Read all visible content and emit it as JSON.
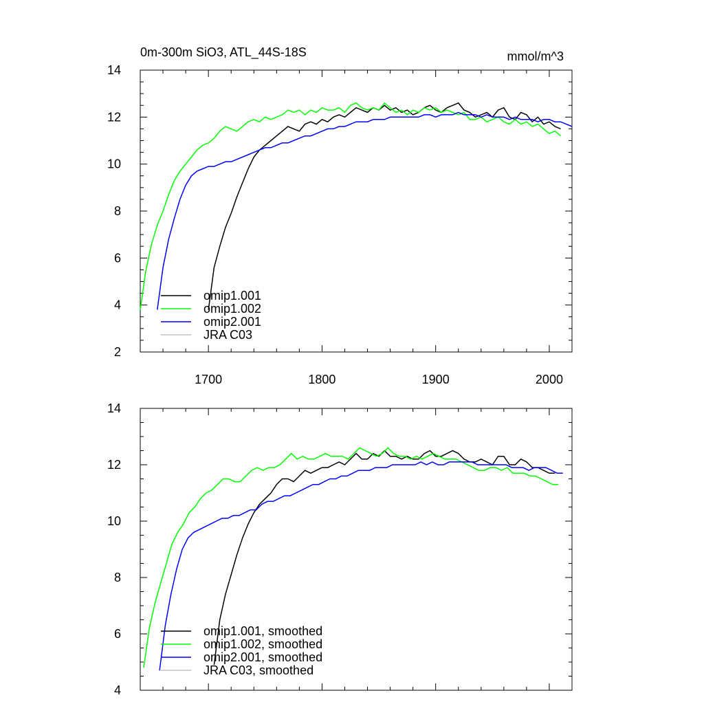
{
  "chart_data": [
    {
      "type": "line",
      "title": "0m-300m SiO3, ATL_44S-18S",
      "units": "mmol/m^3",
      "xlim": [
        1640,
        2020
      ],
      "ylim": [
        2,
        14
      ],
      "yticks": [
        2,
        4,
        6,
        8,
        10,
        12,
        14
      ],
      "xticks": [
        1700,
        1800,
        1900,
        2000
      ],
      "show_xtick_labels": true,
      "grid": false,
      "legend": "bottom-left",
      "series": [
        {
          "name": "omip1.001",
          "color": "#000000",
          "x": [
            1700,
            1705,
            1710,
            1715,
            1720,
            1725,
            1730,
            1735,
            1740,
            1745,
            1750,
            1755,
            1760,
            1765,
            1770,
            1775,
            1780,
            1785,
            1790,
            1795,
            1800,
            1805,
            1810,
            1815,
            1820,
            1825,
            1830,
            1835,
            1840,
            1845,
            1850,
            1855,
            1860,
            1865,
            1870,
            1875,
            1880,
            1885,
            1890,
            1895,
            1900,
            1905,
            1910,
            1915,
            1920,
            1925,
            1930,
            1935,
            1940,
            1945,
            1950,
            1955,
            1960,
            1965,
            1970,
            1975,
            1980,
            1985,
            1990,
            1995,
            2000,
            2005,
            2010
          ],
          "values": [
            3.8,
            5.6,
            6.5,
            7.3,
            7.9,
            8.6,
            9.2,
            9.8,
            10.3,
            10.6,
            10.8,
            11.0,
            11.2,
            11.4,
            11.6,
            11.5,
            11.4,
            11.7,
            11.8,
            11.7,
            11.9,
            11.8,
            12.0,
            12.1,
            12.0,
            12.2,
            12.4,
            12.3,
            12.2,
            12.4,
            12.3,
            12.5,
            12.3,
            12.4,
            12.2,
            12.3,
            12.1,
            12.2,
            12.4,
            12.5,
            12.3,
            12.2,
            12.4,
            12.5,
            12.6,
            12.3,
            12.2,
            12.0,
            12.1,
            12.2,
            12.0,
            12.3,
            12.4,
            12.0,
            11.9,
            12.2,
            12.1,
            11.8,
            12.0,
            11.7,
            11.8,
            11.6,
            11.5
          ]
        },
        {
          "name": "omip1.002",
          "color": "#00ff00",
          "x": [
            1640,
            1645,
            1650,
            1655,
            1660,
            1665,
            1670,
            1675,
            1680,
            1685,
            1690,
            1695,
            1700,
            1705,
            1710,
            1715,
            1720,
            1725,
            1730,
            1735,
            1740,
            1745,
            1750,
            1755,
            1760,
            1765,
            1770,
            1775,
            1780,
            1785,
            1790,
            1795,
            1800,
            1805,
            1810,
            1815,
            1820,
            1825,
            1830,
            1835,
            1840,
            1845,
            1850,
            1855,
            1860,
            1865,
            1870,
            1875,
            1880,
            1885,
            1890,
            1895,
            1900,
            1905,
            1910,
            1915,
            1920,
            1925,
            1930,
            1935,
            1940,
            1945,
            1950,
            1955,
            1960,
            1965,
            1970,
            1975,
            1980,
            1985,
            1990,
            1995,
            2000,
            2005,
            2010
          ],
          "values": [
            3.8,
            5.5,
            6.6,
            7.4,
            8.0,
            8.7,
            9.3,
            9.7,
            10.0,
            10.3,
            10.6,
            10.8,
            10.9,
            11.1,
            11.4,
            11.6,
            11.5,
            11.4,
            11.6,
            11.8,
            11.9,
            11.8,
            12.0,
            11.9,
            12.0,
            12.1,
            12.3,
            12.2,
            12.3,
            12.1,
            12.3,
            12.2,
            12.4,
            12.3,
            12.3,
            12.4,
            12.2,
            12.5,
            12.6,
            12.4,
            12.3,
            12.4,
            12.3,
            12.6,
            12.4,
            12.2,
            12.3,
            12.1,
            12.3,
            12.2,
            12.4,
            12.3,
            12.4,
            12.2,
            12.3,
            12.2,
            12.1,
            12.2,
            11.9,
            11.9,
            12.0,
            11.8,
            11.9,
            12.0,
            11.8,
            11.7,
            11.9,
            11.7,
            11.8,
            11.6,
            11.7,
            11.5,
            11.3,
            11.4,
            11.2
          ]
        },
        {
          "name": "omip2.001",
          "color": "#0000ff",
          "x": [
            1655,
            1660,
            1665,
            1670,
            1675,
            1680,
            1685,
            1690,
            1695,
            1700,
            1705,
            1710,
            1715,
            1720,
            1725,
            1730,
            1735,
            1740,
            1745,
            1750,
            1755,
            1760,
            1765,
            1770,
            1775,
            1780,
            1785,
            1790,
            1795,
            1800,
            1805,
            1810,
            1815,
            1820,
            1825,
            1830,
            1835,
            1840,
            1845,
            1850,
            1855,
            1860,
            1865,
            1870,
            1875,
            1880,
            1885,
            1890,
            1895,
            1900,
            1905,
            1910,
            1915,
            1920,
            1925,
            1930,
            1935,
            1940,
            1945,
            1950,
            1955,
            1960,
            1965,
            1970,
            1975,
            1980,
            1985,
            1990,
            1995,
            2000,
            2005,
            2010,
            2015,
            2020
          ],
          "values": [
            3.8,
            5.6,
            6.8,
            7.7,
            8.5,
            9.1,
            9.5,
            9.7,
            9.8,
            9.9,
            9.9,
            10.0,
            10.1,
            10.1,
            10.2,
            10.3,
            10.4,
            10.5,
            10.6,
            10.7,
            10.7,
            10.8,
            10.9,
            10.9,
            11.0,
            11.1,
            11.2,
            11.2,
            11.3,
            11.4,
            11.5,
            11.5,
            11.6,
            11.6,
            11.7,
            11.8,
            11.8,
            11.8,
            11.9,
            11.9,
            11.9,
            12.0,
            12.0,
            12.0,
            12.0,
            12.0,
            12.0,
            12.1,
            12.1,
            12.0,
            12.1,
            12.1,
            12.1,
            12.2,
            12.1,
            12.1,
            12.1,
            12.0,
            12.1,
            12.0,
            12.0,
            12.0,
            11.9,
            12.0,
            11.9,
            11.9,
            11.9,
            11.8,
            11.9,
            11.9,
            11.8,
            11.8,
            11.7,
            11.6
          ]
        },
        {
          "name": "JRA C03",
          "color": "#c0c0c0",
          "x": [],
          "values": []
        }
      ]
    },
    {
      "type": "line",
      "title": "",
      "units": "",
      "xlim": [
        1640,
        2020
      ],
      "ylim": [
        4,
        14
      ],
      "yticks": [
        4,
        6,
        8,
        10,
        12,
        14
      ],
      "xticks": [
        1700,
        1800,
        1900,
        2000
      ],
      "show_xtick_labels": false,
      "grid": false,
      "legend": "bottom-left",
      "series": [
        {
          "name": "omip1.001, smoothed",
          "color": "#000000",
          "x": [
            1705,
            1710,
            1715,
            1720,
            1725,
            1730,
            1735,
            1740,
            1745,
            1750,
            1755,
            1760,
            1765,
            1770,
            1775,
            1780,
            1785,
            1790,
            1795,
            1800,
            1805,
            1810,
            1815,
            1820,
            1825,
            1830,
            1835,
            1840,
            1845,
            1850,
            1855,
            1860,
            1865,
            1870,
            1875,
            1880,
            1885,
            1890,
            1895,
            1900,
            1905,
            1910,
            1915,
            1920,
            1925,
            1930,
            1935,
            1940,
            1945,
            1950,
            1955,
            1960,
            1965,
            1970,
            1975,
            1980,
            1985,
            1990,
            1995,
            2000,
            2005
          ],
          "values": [
            4.9,
            6.5,
            7.4,
            8.1,
            8.8,
            9.4,
            9.9,
            10.3,
            10.6,
            10.8,
            11.0,
            11.3,
            11.5,
            11.5,
            11.4,
            11.6,
            11.8,
            11.7,
            11.8,
            11.9,
            11.9,
            12.0,
            12.1,
            12.0,
            12.2,
            12.4,
            12.2,
            12.2,
            12.4,
            12.3,
            12.5,
            12.3,
            12.3,
            12.2,
            12.3,
            12.2,
            12.2,
            12.4,
            12.5,
            12.3,
            12.3,
            12.4,
            12.5,
            12.4,
            12.2,
            12.1,
            12.1,
            12.2,
            12.1,
            12.0,
            12.3,
            12.3,
            12.0,
            12.0,
            12.2,
            12.1,
            11.9,
            11.9,
            11.8,
            11.7,
            11.7
          ]
        },
        {
          "name": "omip1.002, smoothed",
          "color": "#00ff00",
          "x": [
            1643,
            1648,
            1653,
            1658,
            1663,
            1668,
            1673,
            1678,
            1683,
            1688,
            1693,
            1698,
            1703,
            1708,
            1713,
            1718,
            1723,
            1728,
            1733,
            1738,
            1743,
            1748,
            1753,
            1758,
            1763,
            1768,
            1773,
            1778,
            1783,
            1788,
            1793,
            1798,
            1803,
            1808,
            1813,
            1818,
            1823,
            1828,
            1833,
            1838,
            1843,
            1848,
            1853,
            1858,
            1863,
            1868,
            1873,
            1878,
            1883,
            1888,
            1893,
            1898,
            1903,
            1908,
            1913,
            1918,
            1923,
            1928,
            1933,
            1938,
            1943,
            1948,
            1953,
            1958,
            1963,
            1968,
            1973,
            1978,
            1983,
            1988,
            1993,
            1998,
            2003,
            2008
          ],
          "values": [
            4.8,
            6.2,
            7.1,
            7.8,
            8.5,
            9.2,
            9.6,
            9.9,
            10.3,
            10.5,
            10.8,
            11.0,
            11.1,
            11.3,
            11.5,
            11.5,
            11.4,
            11.4,
            11.6,
            11.8,
            11.9,
            11.8,
            11.9,
            11.9,
            12.0,
            12.2,
            12.4,
            12.2,
            12.3,
            12.2,
            12.2,
            12.3,
            12.4,
            12.3,
            12.3,
            12.3,
            12.2,
            12.4,
            12.6,
            12.5,
            12.4,
            12.3,
            12.4,
            12.6,
            12.4,
            12.3,
            12.3,
            12.2,
            12.3,
            12.2,
            12.3,
            12.4,
            12.3,
            12.2,
            12.2,
            12.2,
            12.1,
            12.0,
            11.9,
            11.8,
            11.8,
            11.9,
            11.9,
            11.8,
            11.9,
            11.7,
            11.7,
            11.7,
            11.6,
            11.6,
            11.5,
            11.4,
            11.3,
            11.3
          ]
        },
        {
          "name": "omip2.001, smoothed",
          "color": "#0000ff",
          "x": [
            1657,
            1662,
            1667,
            1672,
            1677,
            1682,
            1687,
            1692,
            1697,
            1702,
            1707,
            1712,
            1717,
            1722,
            1727,
            1732,
            1737,
            1742,
            1747,
            1752,
            1757,
            1762,
            1767,
            1772,
            1777,
            1782,
            1787,
            1792,
            1797,
            1802,
            1807,
            1812,
            1817,
            1822,
            1827,
            1832,
            1837,
            1842,
            1847,
            1852,
            1857,
            1862,
            1867,
            1872,
            1877,
            1882,
            1887,
            1892,
            1897,
            1902,
            1907,
            1912,
            1917,
            1922,
            1927,
            1932,
            1937,
            1942,
            1947,
            1952,
            1957,
            1962,
            1967,
            1972,
            1977,
            1982,
            1987,
            1992,
            1997,
            2002,
            2007,
            2012
          ],
          "values": [
            4.7,
            6.3,
            7.4,
            8.3,
            9.0,
            9.4,
            9.6,
            9.7,
            9.8,
            9.9,
            10.0,
            10.1,
            10.1,
            10.2,
            10.2,
            10.3,
            10.4,
            10.4,
            10.6,
            10.7,
            10.7,
            10.8,
            10.9,
            10.9,
            11.0,
            11.1,
            11.2,
            11.3,
            11.3,
            11.4,
            11.5,
            11.5,
            11.6,
            11.6,
            11.7,
            11.8,
            11.8,
            11.8,
            11.9,
            11.9,
            11.9,
            12.0,
            12.0,
            12.0,
            12.0,
            12.0,
            12.1,
            12.0,
            12.1,
            12.0,
            12.0,
            12.1,
            12.1,
            12.1,
            12.1,
            12.1,
            12.0,
            12.0,
            12.0,
            12.0,
            12.0,
            12.0,
            11.9,
            11.9,
            11.9,
            11.8,
            11.9,
            11.9,
            11.9,
            11.8,
            11.7,
            11.7
          ]
        },
        {
          "name": "JRA C03, smoothed",
          "color": "#c0c0c0",
          "x": [],
          "values": []
        }
      ]
    }
  ]
}
